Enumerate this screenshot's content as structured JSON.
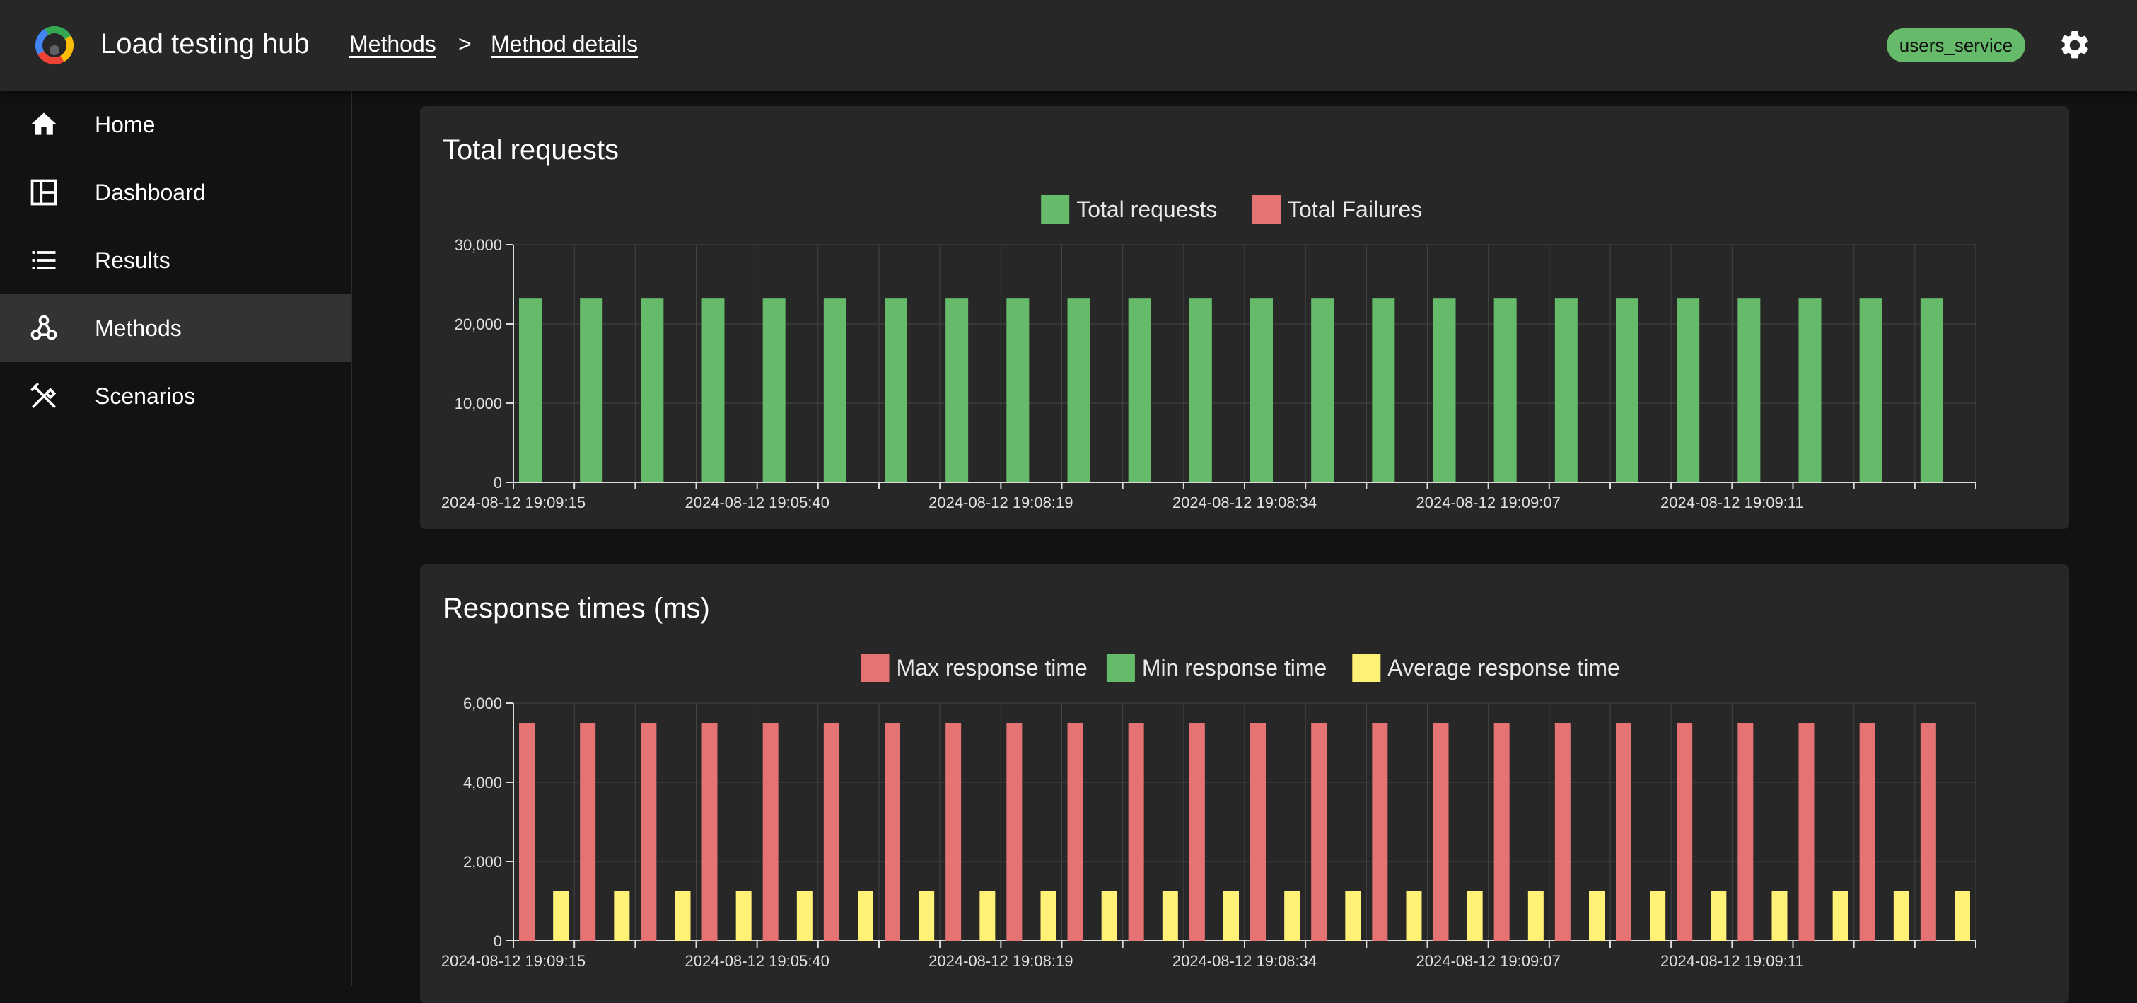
{
  "app": {
    "title": "Load testing hub"
  },
  "breadcrumb": [
    {
      "label": "Methods"
    },
    {
      "label": "Method details"
    }
  ],
  "breadcrumb_separator": ">",
  "header": {
    "service_badge": "users_service"
  },
  "sidebar": {
    "items": [
      {
        "label": "Home",
        "icon": "home-icon"
      },
      {
        "label": "Dashboard",
        "icon": "dashboard-icon"
      },
      {
        "label": "Results",
        "icon": "list-icon"
      },
      {
        "label": "Methods",
        "icon": "webhook-icon",
        "active": true
      },
      {
        "label": "Scenarios",
        "icon": "tools-icon"
      }
    ]
  },
  "colors": {
    "green": "#66bb6a",
    "red": "#e57373",
    "yellow": "#fff176",
    "card": "#272727",
    "sidebar_active": "#333333"
  },
  "chart_data": [
    {
      "type": "bar",
      "title": "Total requests",
      "x_tick_labels": [
        "2024-08-12 19:09:15",
        "2024-08-12 19:05:40",
        "2024-08-12 19:08:19",
        "2024-08-12 19:08:34",
        "2024-08-12 19:09:07",
        "2024-08-12 19:09:11"
      ],
      "category_count": 24,
      "yticks": [
        0,
        10000,
        20000,
        30000
      ],
      "ytick_labels": [
        "0",
        "10,000",
        "20,000",
        "30,000"
      ],
      "ylim": [
        0,
        30000
      ],
      "grid": true,
      "legend": "top-center",
      "series": [
        {
          "name": "Total requests",
          "color": "#66bb6a",
          "values": [
            23200,
            23200,
            23200,
            23200,
            23200,
            23200,
            23200,
            23200,
            23200,
            23200,
            23200,
            23200,
            23200,
            23200,
            23200,
            23200,
            23200,
            23200,
            23200,
            23200,
            23200,
            23200,
            23200,
            23200
          ]
        },
        {
          "name": "Total Failures",
          "color": "#e57373",
          "values": [
            0,
            0,
            0,
            0,
            0,
            0,
            0,
            0,
            0,
            0,
            0,
            0,
            0,
            0,
            0,
            0,
            0,
            0,
            0,
            0,
            0,
            0,
            0,
            0
          ]
        }
      ]
    },
    {
      "type": "bar",
      "title": "Response times (ms)",
      "x_tick_labels": [
        "2024-08-12 19:09:15",
        "2024-08-12 19:05:40",
        "2024-08-12 19:08:19",
        "2024-08-12 19:08:34",
        "2024-08-12 19:09:07",
        "2024-08-12 19:09:11"
      ],
      "category_count": 24,
      "yticks": [
        0,
        2000,
        4000,
        6000
      ],
      "ytick_labels": [
        "0",
        "2,000",
        "4,000",
        "6,000"
      ],
      "ylim": [
        0,
        6000
      ],
      "grid": true,
      "legend": "top-center",
      "series": [
        {
          "name": "Max response time",
          "color": "#e57373",
          "values": [
            5500,
            5500,
            5500,
            5500,
            5500,
            5500,
            5500,
            5500,
            5500,
            5500,
            5500,
            5500,
            5500,
            5500,
            5500,
            5500,
            5500,
            5500,
            5500,
            5500,
            5500,
            5500,
            5500,
            5500
          ]
        },
        {
          "name": "Min response time",
          "color": "#66bb6a",
          "values": [
            0,
            0,
            0,
            0,
            0,
            0,
            0,
            0,
            0,
            0,
            0,
            0,
            0,
            0,
            0,
            0,
            0,
            0,
            0,
            0,
            0,
            0,
            0,
            0
          ]
        },
        {
          "name": "Average response time",
          "color": "#fff176",
          "values": [
            1250,
            1250,
            1250,
            1250,
            1250,
            1250,
            1250,
            1250,
            1250,
            1250,
            1250,
            1250,
            1250,
            1250,
            1250,
            1250,
            1250,
            1250,
            1250,
            1250,
            1250,
            1250,
            1250,
            1250
          ]
        }
      ]
    }
  ]
}
